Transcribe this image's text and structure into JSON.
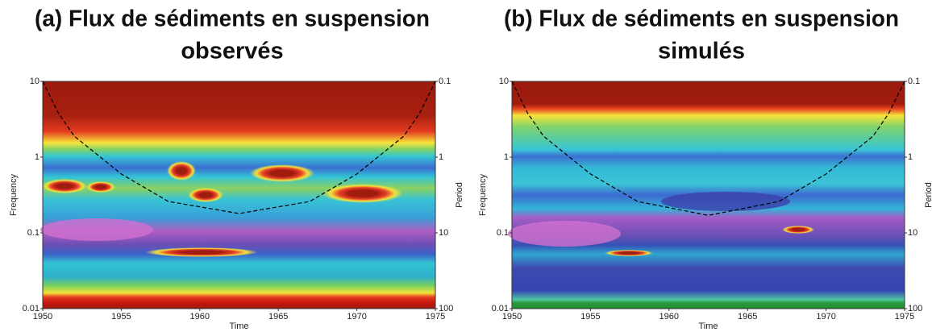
{
  "chart_data": [
    {
      "type": "line",
      "title": [
        "(a) Flux de sédiments en suspension",
        "observés"
      ],
      "xlabel": "Time",
      "ylabel": "Frequency",
      "y2label": "Period",
      "xlim": [
        1950,
        1975
      ],
      "xticks": [
        1950,
        1955,
        1960,
        1965,
        1970,
        1975
      ],
      "ylim": [
        0.01,
        10
      ],
      "yticks": [
        0.01,
        0.1,
        1,
        10
      ],
      "log_y": true,
      "y2lim": [
        100,
        0.1
      ],
      "y2ticks": [
        100,
        10,
        1,
        0.1
      ],
      "log_y2": true,
      "x": [
        1950,
        1951,
        1952,
        1955,
        1958,
        1962.5,
        1967,
        1970,
        1973,
        1974,
        1975
      ],
      "values": [
        10,
        3.8,
        1.9,
        0.6,
        0.26,
        0.18,
        0.26,
        0.6,
        1.9,
        3.8,
        10
      ],
      "color": "#000000",
      "dashed": true
    },
    {
      "type": "line",
      "title": [
        "(b) Flux de sédiments en suspension",
        "simulés"
      ],
      "xlabel": "Time",
      "ylabel": "Frequency",
      "y2label": "Period",
      "xlim": [
        1950,
        1975
      ],
      "xticks": [
        1950,
        1955,
        1960,
        1965,
        1970,
        1975
      ],
      "ylim": [
        0.01,
        10
      ],
      "yticks": [
        0.01,
        0.1,
        1,
        10
      ],
      "log_y": true,
      "y2lim": [
        100,
        0.1
      ],
      "y2ticks": [
        100,
        10,
        1,
        0.1
      ],
      "log_y2": true,
      "x": [
        1950,
        1951,
        1952,
        1955,
        1958,
        1962.5,
        1967,
        1970,
        1973,
        1974,
        1975
      ],
      "values": [
        10,
        3.8,
        1.9,
        0.6,
        0.26,
        0.17,
        0.26,
        0.6,
        1.9,
        3.8,
        10
      ],
      "color": "#000000",
      "dashed": true
    }
  ]
}
